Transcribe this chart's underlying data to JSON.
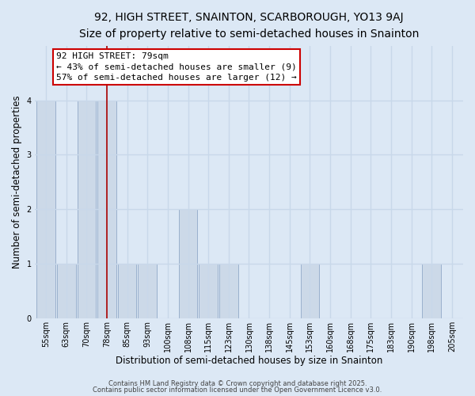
{
  "title": "92, HIGH STREET, SNAINTON, SCARBOROUGH, YO13 9AJ",
  "subtitle": "Size of property relative to semi-detached houses in Snainton",
  "xlabel": "Distribution of semi-detached houses by size in Snainton",
  "ylabel": "Number of semi-detached properties",
  "bar_labels": [
    "55sqm",
    "63sqm",
    "70sqm",
    "78sqm",
    "85sqm",
    "93sqm",
    "100sqm",
    "108sqm",
    "115sqm",
    "123sqm",
    "130sqm",
    "138sqm",
    "145sqm",
    "153sqm",
    "160sqm",
    "168sqm",
    "175sqm",
    "183sqm",
    "190sqm",
    "198sqm",
    "205sqm"
  ],
  "bar_values": [
    4,
    1,
    4,
    4,
    1,
    1,
    0,
    2,
    1,
    1,
    0,
    0,
    0,
    1,
    0,
    0,
    0,
    0,
    0,
    1,
    0
  ],
  "bar_color": "#ccd9e8",
  "bar_edge_color": "#9ab0cc",
  "subject_label": "78sqm",
  "subject_index": 3,
  "vline_color": "#aa0000",
  "ylim": [
    0,
    5
  ],
  "yticks": [
    0,
    1,
    2,
    3,
    4,
    5
  ],
  "annotation_title": "92 HIGH STREET: 79sqm",
  "annotation_line1": "← 43% of semi-detached houses are smaller (9)",
  "annotation_line2": "57% of semi-detached houses are larger (12) →",
  "annotation_box_color": "#ffffff",
  "annotation_box_edge_color": "#cc0000",
  "bg_color": "#dce8f5",
  "grid_color": "#c8d8ea",
  "footer1": "Contains HM Land Registry data © Crown copyright and database right 2025.",
  "footer2": "Contains public sector information licensed under the Open Government Licence v3.0.",
  "title_fontsize": 10,
  "subtitle_fontsize": 9,
  "axis_label_fontsize": 8.5,
  "tick_fontsize": 7,
  "footer_fontsize": 6,
  "annotation_fontsize": 8
}
